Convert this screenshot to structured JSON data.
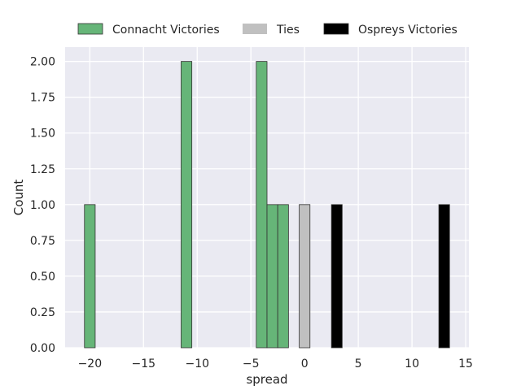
{
  "chart_data": {
    "type": "bar",
    "title": "",
    "xlabel": "spread",
    "ylabel": "Count",
    "xlim": [
      -22.3,
      15.3
    ],
    "ylim": [
      0,
      2.1
    ],
    "xticks": [
      -20,
      -15,
      -10,
      -5,
      0,
      5,
      10,
      15
    ],
    "xtick_labels": [
      "−20",
      "−15",
      "−10",
      "−5",
      "0",
      "5",
      "10",
      "15"
    ],
    "yticks": [
      0,
      0.25,
      0.5,
      0.75,
      1.0,
      1.25,
      1.5,
      1.75,
      2.0
    ],
    "ytick_labels": [
      "0.00",
      "0.25",
      "0.50",
      "0.75",
      "1.00",
      "1.25",
      "1.50",
      "1.75",
      "2.00"
    ],
    "grid": true,
    "legend_position": "top-center",
    "bin_width": 1,
    "series": [
      {
        "name": "Connacht Victories",
        "color": "#66b578",
        "bars": [
          {
            "x": -20,
            "count": 1
          },
          {
            "x": -11,
            "count": 2
          },
          {
            "x": -4,
            "count": 2
          },
          {
            "x": -3,
            "count": 1
          },
          {
            "x": -2,
            "count": 1
          }
        ]
      },
      {
        "name": "Ties",
        "color": "#c0c0c0",
        "bars": [
          {
            "x": 0,
            "count": 1
          }
        ]
      },
      {
        "name": "Ospreys Victories",
        "color": "#000000",
        "bars": [
          {
            "x": 3,
            "count": 1
          },
          {
            "x": 13,
            "count": 1
          }
        ]
      }
    ]
  }
}
